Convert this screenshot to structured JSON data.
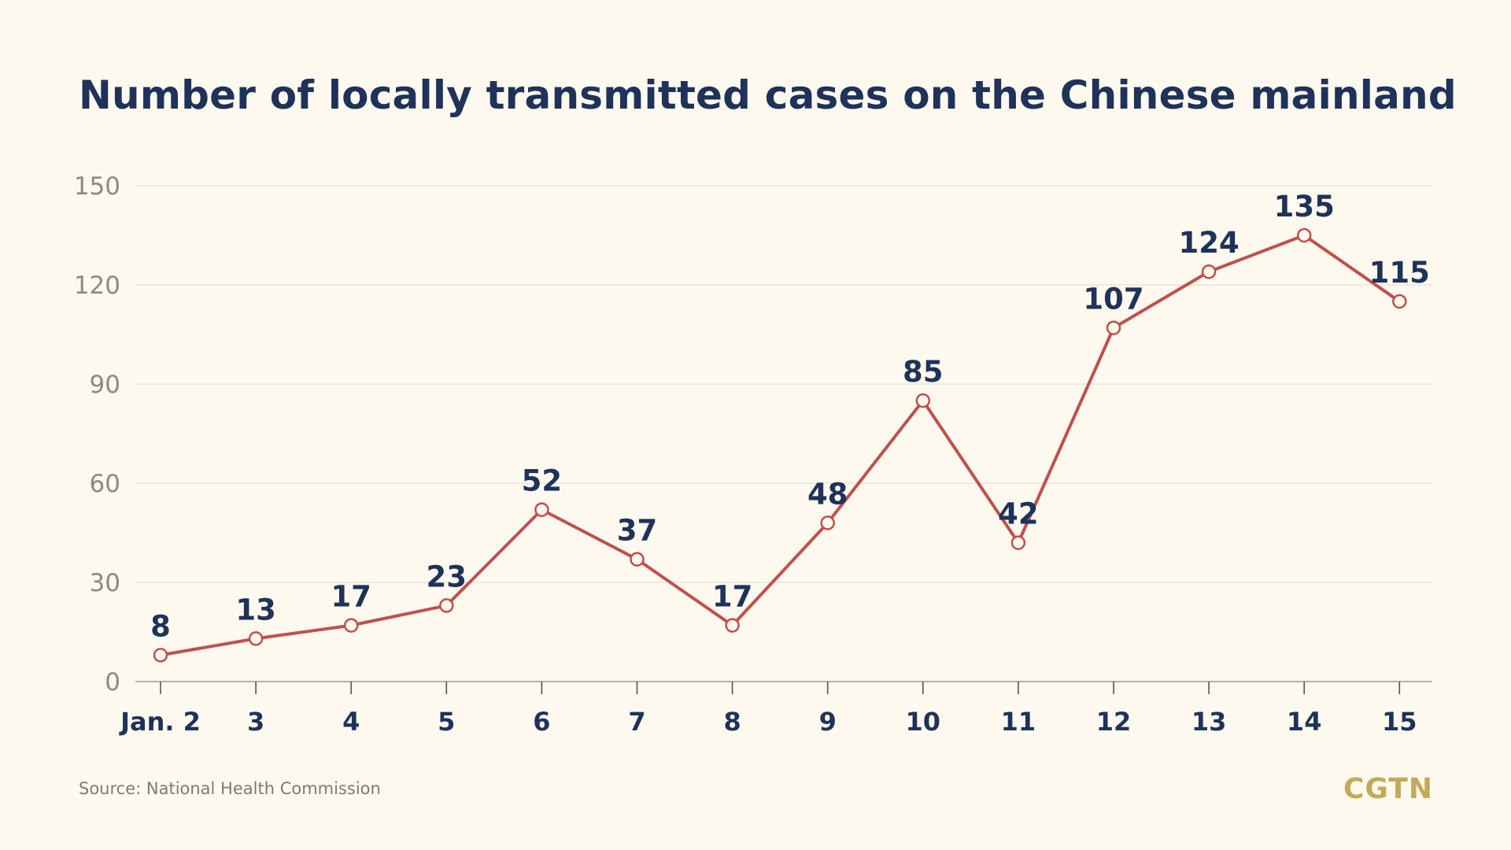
{
  "colors": {
    "background": "#fdf9ee",
    "title": "#1f3259",
    "line": "#c0504d",
    "marker_fill": "#fdf9ee",
    "grid": "#e6e2d6",
    "axis": "#9a9a9a",
    "ytick": "#8a8a8a",
    "xtick": "#1f3259",
    "data_label": "#1f3259",
    "logo": "#c4a95a"
  },
  "footer": {
    "source": "Source: National Health Commission",
    "logo_text": "CGTN"
  },
  "chart_data": {
    "type": "line",
    "title": "Number of locally transmitted cases on the Chinese mainland",
    "xlabel": "",
    "ylabel": "",
    "categories": [
      "Jan. 2",
      "3",
      "4",
      "5",
      "6",
      "7",
      "8",
      "9",
      "10",
      "11",
      "12",
      "13",
      "14",
      "15"
    ],
    "values": [
      8,
      13,
      17,
      23,
      52,
      37,
      17,
      48,
      85,
      42,
      107,
      124,
      135,
      115
    ],
    "data_labels": [
      "8",
      "13",
      "17",
      "23",
      "52",
      "37",
      "17",
      "48",
      "85",
      "42",
      "107",
      "124",
      "135",
      "115"
    ],
    "ylim": [
      0,
      150
    ],
    "yticks": [
      0,
      30,
      60,
      90,
      120,
      150
    ],
    "grid": true,
    "legend": "none"
  }
}
